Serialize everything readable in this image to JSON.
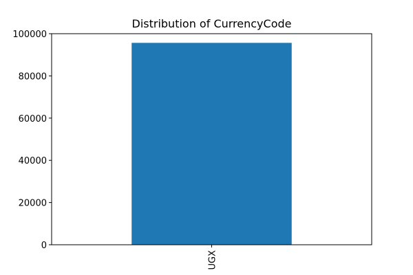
{
  "chart_data": {
    "type": "bar",
    "title": "Distribution of CurrencyCode",
    "xlabel": "",
    "ylabel": "",
    "categories": [
      "UGX"
    ],
    "values": [
      95662
    ],
    "ylim": [
      0,
      100000
    ],
    "yticks": [
      0,
      20000,
      40000,
      60000,
      80000,
      100000
    ],
    "grid": false,
    "bar_color": "#1f77b4"
  }
}
